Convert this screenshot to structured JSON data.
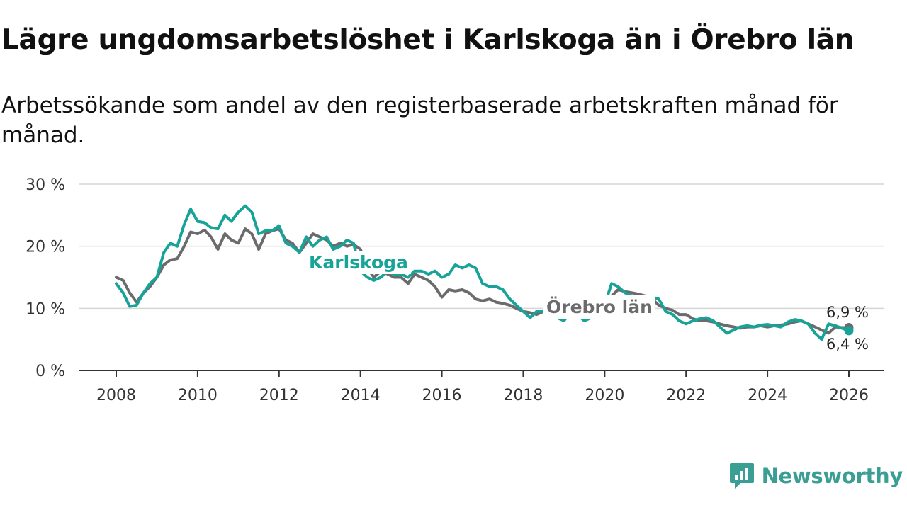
{
  "header": {
    "title": "Lägre ungdomsarbetslöshet i Karlskoga än i Örebro län",
    "subtitle": "Arbetssökande som andel av den registerbaserade arbetskraften månad för månad."
  },
  "brand": {
    "name": "Newsworthy",
    "icon": "newsworthy-logo-icon",
    "color": "#3a9e95"
  },
  "chart_data": {
    "type": "line",
    "title": "Lägre ungdomsarbetslöshet i Karlskoga än i Örebro län",
    "subtitle": "Arbetssökande som andel av den registerbaserade arbetskraften månad för månad.",
    "xlabel": "",
    "ylabel": "",
    "xlim": [
      2008,
      2026
    ],
    "ylim": [
      0,
      30
    ],
    "grid": true,
    "y_ticks": [
      {
        "value": 0,
        "label": "0 %"
      },
      {
        "value": 10,
        "label": "10 %"
      },
      {
        "value": 20,
        "label": "20 %"
      },
      {
        "value": 30,
        "label": "30 %"
      }
    ],
    "x_ticks": [
      {
        "value": 2008,
        "label": "2008"
      },
      {
        "value": 2010,
        "label": "2010"
      },
      {
        "value": 2012,
        "label": "2012"
      },
      {
        "value": 2014,
        "label": "2014"
      },
      {
        "value": 2016,
        "label": "2016"
      },
      {
        "value": 2018,
        "label": "2018"
      },
      {
        "value": 2020,
        "label": "2020"
      },
      {
        "value": 2022,
        "label": "2022"
      },
      {
        "value": 2024,
        "label": "2024"
      },
      {
        "value": 2026,
        "label": "2026"
      }
    ],
    "series": [
      {
        "name": "Örebro län",
        "label": "Örebro län",
        "color": "#6b6b6e",
        "end_label": "6,9 %",
        "x": [
          2008.0,
          2008.17,
          2008.33,
          2008.5,
          2008.67,
          2008.83,
          2009.0,
          2009.17,
          2009.33,
          2009.5,
          2009.67,
          2009.83,
          2010.0,
          2010.17,
          2010.33,
          2010.5,
          2010.67,
          2010.83,
          2011.0,
          2011.17,
          2011.33,
          2011.5,
          2011.67,
          2011.83,
          2012.0,
          2012.17,
          2012.33,
          2012.5,
          2012.67,
          2012.83,
          2013.0,
          2013.17,
          2013.33,
          2013.5,
          2013.67,
          2013.83,
          2014.0,
          2014.17,
          2014.33,
          2014.5,
          2014.67,
          2014.83,
          2015.0,
          2015.17,
          2015.33,
          2015.5,
          2015.67,
          2015.83,
          2016.0,
          2016.17,
          2016.33,
          2016.5,
          2016.67,
          2016.83,
          2017.0,
          2017.17,
          2017.33,
          2017.5,
          2017.67,
          2017.83,
          2018.0,
          2018.17,
          2018.33,
          2018.5,
          2018.67,
          2018.83,
          2019.0,
          2019.17,
          2019.33,
          2019.5,
          2019.67,
          2019.83,
          2020.0,
          2020.17,
          2020.33,
          2020.5,
          2020.67,
          2020.83,
          2021.0,
          2021.17,
          2021.33,
          2021.5,
          2021.67,
          2021.83,
          2022.0,
          2022.17,
          2022.33,
          2022.5,
          2022.67,
          2022.83,
          2023.0,
          2023.17,
          2023.33,
          2023.5,
          2023.67,
          2023.83,
          2024.0,
          2024.17,
          2024.33,
          2024.5,
          2024.67,
          2024.83,
          2025.0,
          2025.17,
          2025.33,
          2025.5,
          2025.67,
          2025.83,
          2026.0
        ],
        "values": [
          15.0,
          14.5,
          12.5,
          11.0,
          12.5,
          13.5,
          15.0,
          17.0,
          17.8,
          18.0,
          20.0,
          22.3,
          22.0,
          22.6,
          21.5,
          19.5,
          22.0,
          21.0,
          20.5,
          22.8,
          22.0,
          19.5,
          22.0,
          22.5,
          22.8,
          21.0,
          20.5,
          19.0,
          20.5,
          22.0,
          21.5,
          21.0,
          20.0,
          20.5,
          20.0,
          20.3,
          19.5,
          16.5,
          15.0,
          16.0,
          15.5,
          15.0,
          15.0,
          14.0,
          15.5,
          15.0,
          14.5,
          13.5,
          11.8,
          13.0,
          12.8,
          13.0,
          12.5,
          11.5,
          11.2,
          11.5,
          11.0,
          10.8,
          10.5,
          10.0,
          9.5,
          9.3,
          9.0,
          9.5,
          10.0,
          10.0,
          10.0,
          9.5,
          9.0,
          9.0,
          9.2,
          9.5,
          9.3,
          12.0,
          13.0,
          12.7,
          12.5,
          12.3,
          12.0,
          11.5,
          10.5,
          10.0,
          9.7,
          9.0,
          9.0,
          8.3,
          8.0,
          8.0,
          7.8,
          7.5,
          7.2,
          7.0,
          6.8,
          7.0,
          7.0,
          7.2,
          7.0,
          7.2,
          7.3,
          7.5,
          7.8,
          8.0,
          7.5,
          7.0,
          6.5,
          6.0,
          7.0,
          6.9,
          6.9
        ]
      },
      {
        "name": "Karlskoga",
        "label": "Karlskoga",
        "color": "#17a398",
        "end_label": "6,4 %",
        "x": [
          2008.0,
          2008.17,
          2008.33,
          2008.5,
          2008.67,
          2008.83,
          2009.0,
          2009.17,
          2009.33,
          2009.5,
          2009.67,
          2009.83,
          2010.0,
          2010.17,
          2010.33,
          2010.5,
          2010.67,
          2010.83,
          2011.0,
          2011.17,
          2011.33,
          2011.5,
          2011.67,
          2011.83,
          2012.0,
          2012.17,
          2012.33,
          2012.5,
          2012.67,
          2012.83,
          2013.0,
          2013.17,
          2013.33,
          2013.5,
          2013.67,
          2013.83,
          2014.0,
          2014.17,
          2014.33,
          2014.5,
          2014.67,
          2014.83,
          2015.0,
          2015.17,
          2015.33,
          2015.5,
          2015.67,
          2015.83,
          2016.0,
          2016.17,
          2016.33,
          2016.5,
          2016.67,
          2016.83,
          2017.0,
          2017.17,
          2017.33,
          2017.5,
          2017.67,
          2017.83,
          2018.0,
          2018.17,
          2018.33,
          2018.5,
          2018.67,
          2018.83,
          2019.0,
          2019.17,
          2019.33,
          2019.5,
          2019.67,
          2019.83,
          2020.0,
          2020.17,
          2020.33,
          2020.5,
          2020.67,
          2020.83,
          2021.0,
          2021.17,
          2021.33,
          2021.5,
          2021.67,
          2021.83,
          2022.0,
          2022.17,
          2022.33,
          2022.5,
          2022.67,
          2022.83,
          2023.0,
          2023.17,
          2023.33,
          2023.5,
          2023.67,
          2023.83,
          2024.0,
          2024.17,
          2024.33,
          2024.5,
          2024.67,
          2024.83,
          2025.0,
          2025.17,
          2025.33,
          2025.5,
          2025.67,
          2025.83,
          2026.0
        ],
        "values": [
          14.0,
          12.5,
          10.3,
          10.5,
          12.5,
          14.0,
          15.0,
          19.0,
          20.5,
          20.0,
          23.5,
          26.0,
          24.0,
          23.8,
          23.0,
          22.8,
          25.0,
          24.0,
          25.5,
          26.5,
          25.5,
          22.0,
          22.5,
          22.5,
          23.3,
          20.5,
          20.0,
          19.0,
          21.5,
          20.0,
          21.0,
          21.5,
          19.5,
          20.0,
          21.0,
          20.5,
          16.0,
          15.0,
          14.5,
          15.0,
          16.0,
          15.5,
          15.5,
          15.0,
          16.0,
          16.0,
          15.5,
          16.0,
          15.0,
          15.5,
          17.0,
          16.5,
          17.0,
          16.5,
          14.0,
          13.5,
          13.5,
          13.0,
          11.5,
          10.5,
          9.5,
          8.5,
          9.5,
          9.5,
          9.0,
          8.5,
          8.0,
          9.5,
          9.0,
          8.0,
          8.5,
          9.5,
          10.5,
          14.0,
          13.5,
          12.5,
          12.0,
          11.5,
          11.0,
          11.8,
          11.5,
          9.5,
          9.0,
          8.0,
          7.5,
          8.0,
          8.3,
          8.5,
          8.0,
          7.0,
          6.0,
          6.5,
          7.0,
          7.2,
          7.0,
          7.3,
          7.4,
          7.2,
          7.0,
          7.8,
          8.2,
          8.0,
          7.5,
          6.0,
          5.0,
          7.5,
          7.2,
          6.8,
          6.4
        ]
      }
    ]
  }
}
